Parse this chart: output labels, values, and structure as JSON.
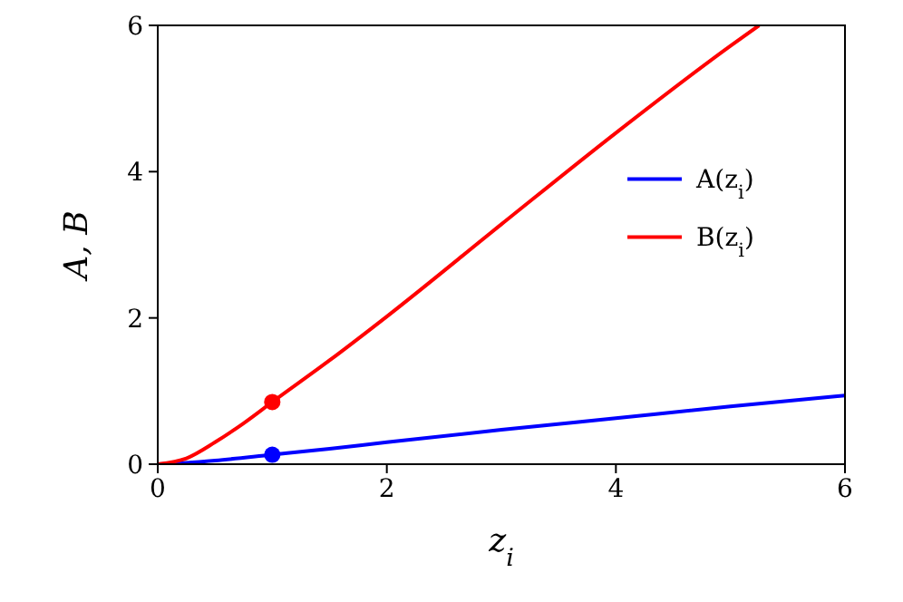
{
  "chart_data": {
    "type": "line",
    "xlabel": "z$_{i}$",
    "ylabel": "A,  B",
    "series": [
      {
        "name": "A(z$_{i}$)",
        "color": "#0000ff",
        "x": [
          0,
          0.25,
          0.5,
          1,
          1.5,
          2,
          3,
          4,
          5,
          6
        ],
        "values": [
          0,
          0.02,
          0.05,
          0.13,
          0.21,
          0.3,
          0.47,
          0.63,
          0.79,
          0.94
        ]
      },
      {
        "name": "B(z$_{i}$)",
        "color": "#ff0000",
        "x": [
          0,
          0.25,
          0.5,
          0.75,
          1,
          1.5,
          2,
          3,
          4,
          5,
          5.25
        ],
        "values": [
          0,
          0.08,
          0.3,
          0.56,
          0.85,
          1.42,
          2.02,
          3.28,
          4.53,
          5.72,
          6
        ]
      },
      {
        "type": "scatter",
        "color": "#0000ff",
        "x": [
          1
        ],
        "values": [
          0.13
        ]
      },
      {
        "type": "scatter",
        "color": "#ff0000",
        "x": [
          1
        ],
        "values": [
          0.85
        ]
      }
    ],
    "xlim": [
      0,
      6
    ],
    "ylim": [
      0,
      6
    ],
    "xticks": [
      0,
      2,
      4,
      6
    ],
    "yticks": [
      0,
      2,
      4,
      6
    ],
    "legend": "right",
    "line_style": "solid"
  }
}
